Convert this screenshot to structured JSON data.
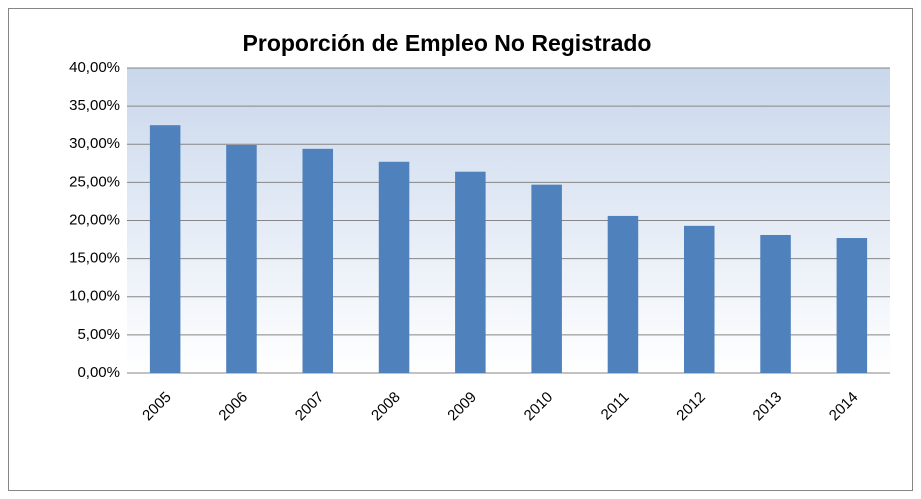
{
  "chart_data": {
    "type": "bar",
    "title": "Proporción de Empleo No Registrado",
    "categories": [
      "2005",
      "2006",
      "2007",
      "2008",
      "2009",
      "2010",
      "2011",
      "2012",
      "2013",
      "2014"
    ],
    "values": [
      32.5,
      29.9,
      29.4,
      27.7,
      26.4,
      24.7,
      20.6,
      19.3,
      18.1,
      17.7
    ],
    "color": "#4f81bd",
    "ylim": [
      0,
      40
    ],
    "yticks": [
      {
        "value": 0,
        "label": "0,00%"
      },
      {
        "value": 5,
        "label": "5,00%"
      },
      {
        "value": 10,
        "label": "10,00%"
      },
      {
        "value": 15,
        "label": "15,00%"
      },
      {
        "value": 20,
        "label": "20,00%"
      },
      {
        "value": 25,
        "label": "25,00%"
      },
      {
        "value": 30,
        "label": "30,00%"
      },
      {
        "value": 35,
        "label": "35,00%"
      },
      {
        "value": 40,
        "label": "40,00%"
      }
    ],
    "grid": true
  }
}
